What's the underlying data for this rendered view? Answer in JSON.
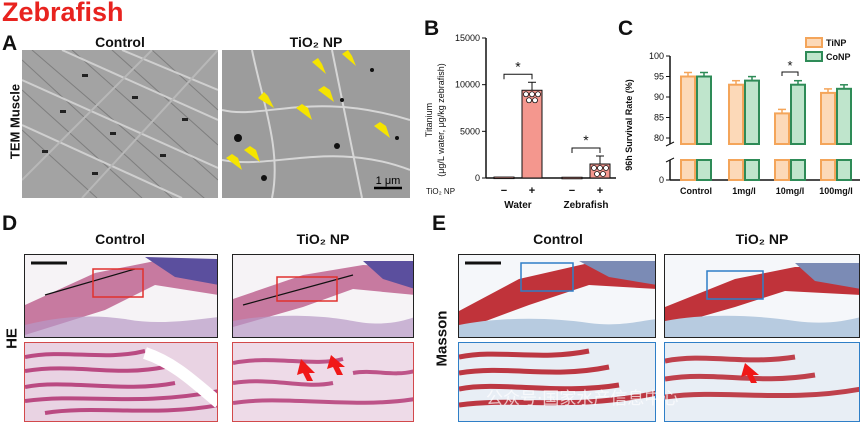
{
  "figure_title": "Zebrafish",
  "panel_letters": [
    "A",
    "B",
    "C",
    "D",
    "E"
  ],
  "panel_a": {
    "row_label": "TEM Muscle",
    "col_headers": [
      "Control",
      "TiO₂ NP"
    ],
    "scale_bar": "1 μm"
  },
  "panel_d": {
    "row_label": "HE",
    "col_headers": [
      "Control",
      "TiO₂ NP"
    ]
  },
  "panel_e": {
    "row_label": "Masson",
    "col_headers": [
      "Control",
      "TiO₂ NP"
    ],
    "watermark": "公众号·国家水产信息中心"
  },
  "chart_data": [
    {
      "id": "B",
      "type": "bar",
      "ylabel": [
        "Titanium",
        "(μg/L water, μg/kg zebrafish)"
      ],
      "ylim": [
        0,
        15000
      ],
      "yticks": [
        0,
        5000,
        10000,
        15000
      ],
      "row_label": "TiO₂ NP",
      "groups": [
        "Water",
        "Zebrafish"
      ],
      "conditions": [
        "−",
        "+"
      ],
      "values": [
        [
          100,
          9400
        ],
        [
          80,
          1500
        ]
      ],
      "significance": [
        "*",
        "*"
      ],
      "bar_color": "#f4978e"
    },
    {
      "id": "C",
      "type": "bar",
      "ylabel": "96h Survival Rate (%)",
      "ylim": [
        80,
        100
      ],
      "axis_break": [
        0,
        80
      ],
      "yticks": [
        0,
        80,
        85,
        90,
        95,
        100
      ],
      "categories": [
        "Control",
        "1mg/l",
        "10mg/l",
        "100mg/l"
      ],
      "series": [
        {
          "name": "TiNP",
          "values": [
            95,
            93,
            86,
            91
          ],
          "color": "#f4a55a"
        },
        {
          "name": "CoNP",
          "values": [
            95,
            94,
            93,
            92
          ],
          "color": "#2e8b57"
        }
      ],
      "significance": {
        "category": "10mg/l",
        "label": "*"
      }
    }
  ]
}
